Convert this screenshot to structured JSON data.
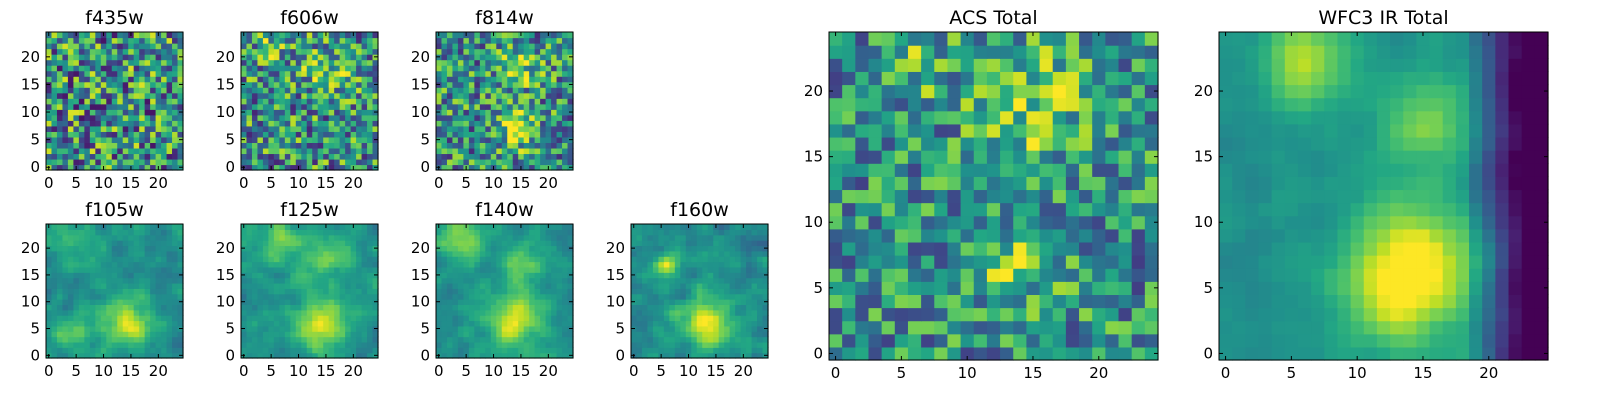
{
  "chart_data": [
    {
      "type": "heatmap",
      "title": "f435w",
      "seed": 11,
      "colormap": "viridis",
      "noise": 0.45,
      "blobs": [],
      "grid": [
        25,
        25
      ],
      "xlim": [
        0,
        24
      ],
      "ylim": [
        0,
        24
      ],
      "xticks": [
        0,
        5,
        10,
        15,
        20
      ],
      "yticks": [
        0,
        5,
        10,
        15,
        20
      ]
    },
    {
      "type": "heatmap",
      "title": "f606w",
      "seed": 22,
      "colormap": "viridis",
      "noise": 0.4,
      "blobs": [
        {
          "x": 15,
          "y": 18,
          "s": 3,
          "a": 0.25
        },
        {
          "x": 5,
          "y": 22,
          "s": 2,
          "a": 0.2
        }
      ],
      "grid": [
        25,
        25
      ],
      "xlim": [
        0,
        24
      ],
      "ylim": [
        0,
        24
      ],
      "xticks": [
        0,
        5,
        10,
        15,
        20
      ],
      "yticks": [
        0,
        5,
        10,
        15,
        20
      ]
    },
    {
      "type": "heatmap",
      "title": "f814w",
      "seed": 33,
      "colormap": "viridis",
      "noise": 0.38,
      "blobs": [
        {
          "x": 14,
          "y": 7,
          "s": 2.5,
          "a": 0.35
        },
        {
          "x": 15,
          "y": 18,
          "s": 2.5,
          "a": 0.3
        }
      ],
      "grid": [
        25,
        25
      ],
      "xlim": [
        0,
        24
      ],
      "ylim": [
        0,
        24
      ],
      "xticks": [
        0,
        5,
        10,
        15,
        20
      ],
      "yticks": [
        0,
        5,
        10,
        15,
        20
      ]
    },
    {
      "type": "heatmap",
      "title": "f105w",
      "seed": 44,
      "colormap": "viridis",
      "noise": 0.25,
      "smooth": true,
      "blobs": [
        {
          "x": 14,
          "y": 6,
          "s": 3,
          "a": 0.45
        },
        {
          "x": 4,
          "y": 4,
          "s": 2,
          "a": 0.3
        },
        {
          "x": 5,
          "y": 20,
          "s": 3,
          "a": 0.2
        }
      ],
      "grid": [
        25,
        25
      ],
      "xlim": [
        0,
        24
      ],
      "ylim": [
        0,
        24
      ],
      "xticks": [
        0,
        5,
        10,
        15,
        20
      ],
      "yticks": [
        0,
        5,
        10,
        15,
        20
      ]
    },
    {
      "type": "heatmap",
      "title": "f125w",
      "seed": 55,
      "colormap": "viridis",
      "noise": 0.22,
      "smooth": true,
      "blobs": [
        {
          "x": 14,
          "y": 6,
          "s": 3.5,
          "a": 0.45
        },
        {
          "x": 7,
          "y": 21,
          "s": 3,
          "a": 0.3
        },
        {
          "x": 15,
          "y": 18,
          "s": 3,
          "a": 0.25
        }
      ],
      "grid": [
        25,
        25
      ],
      "xlim": [
        0,
        24
      ],
      "ylim": [
        0,
        24
      ],
      "xticks": [
        0,
        5,
        10,
        15,
        20
      ],
      "yticks": [
        0,
        5,
        10,
        15,
        20
      ]
    },
    {
      "type": "heatmap",
      "title": "f140w",
      "seed": 66,
      "colormap": "viridis",
      "noise": 0.22,
      "smooth": true,
      "blobs": [
        {
          "x": 14,
          "y": 7,
          "s": 3.5,
          "a": 0.45
        },
        {
          "x": 4,
          "y": 22,
          "s": 3,
          "a": 0.35
        },
        {
          "x": 15,
          "y": 17,
          "s": 2.5,
          "a": 0.25
        }
      ],
      "grid": [
        25,
        25
      ],
      "xlim": [
        0,
        24
      ],
      "ylim": [
        0,
        24
      ],
      "xticks": [
        0,
        5,
        10,
        15,
        20
      ],
      "yticks": [
        0,
        5,
        10,
        15,
        20
      ]
    },
    {
      "type": "heatmap",
      "title": "f160w",
      "seed": 77,
      "colormap": "viridis",
      "noise": 0.25,
      "smooth": true,
      "blobs": [
        {
          "x": 13,
          "y": 6,
          "s": 3,
          "a": 0.5
        },
        {
          "x": 6,
          "y": 17,
          "s": 1.5,
          "a": 0.4
        }
      ],
      "grid": [
        25,
        25
      ],
      "xlim": [
        0,
        24
      ],
      "ylim": [
        0,
        24
      ],
      "xticks": [
        0,
        5,
        10,
        15,
        20
      ],
      "yticks": [
        0,
        5,
        10,
        15,
        20
      ]
    },
    {
      "type": "heatmap",
      "title": "ACS Total",
      "seed": 88,
      "colormap": "viridis",
      "noise": 0.32,
      "blobs": [
        {
          "x": 15,
          "y": 19,
          "s": 3,
          "a": 0.3
        },
        {
          "x": 14,
          "y": 7,
          "s": 2.5,
          "a": 0.25
        },
        {
          "x": 6,
          "y": 22,
          "s": 2,
          "a": 0.2
        }
      ],
      "grid": [
        25,
        25
      ],
      "xlim": [
        0,
        24
      ],
      "ylim": [
        0,
        24
      ],
      "xticks": [
        0,
        5,
        10,
        15,
        20
      ],
      "yticks": [
        0,
        5,
        10,
        15,
        20
      ]
    },
    {
      "type": "heatmap",
      "title": "WFC3 IR Total",
      "seed": 99,
      "colormap": "viridis",
      "noise": 0.12,
      "smooth": true,
      "edgeDark": true,
      "blobs": [
        {
          "x": 14,
          "y": 6,
          "s": 3.5,
          "a": 0.6
        },
        {
          "x": 6,
          "y": 22,
          "s": 2.5,
          "a": 0.35
        },
        {
          "x": 15,
          "y": 18,
          "s": 2.5,
          "a": 0.3
        }
      ],
      "grid": [
        25,
        25
      ],
      "xlim": [
        0,
        24
      ],
      "ylim": [
        0,
        24
      ],
      "xticks": [
        0,
        5,
        10,
        15,
        20
      ],
      "yticks": [
        0,
        5,
        10,
        15,
        20
      ]
    }
  ]
}
